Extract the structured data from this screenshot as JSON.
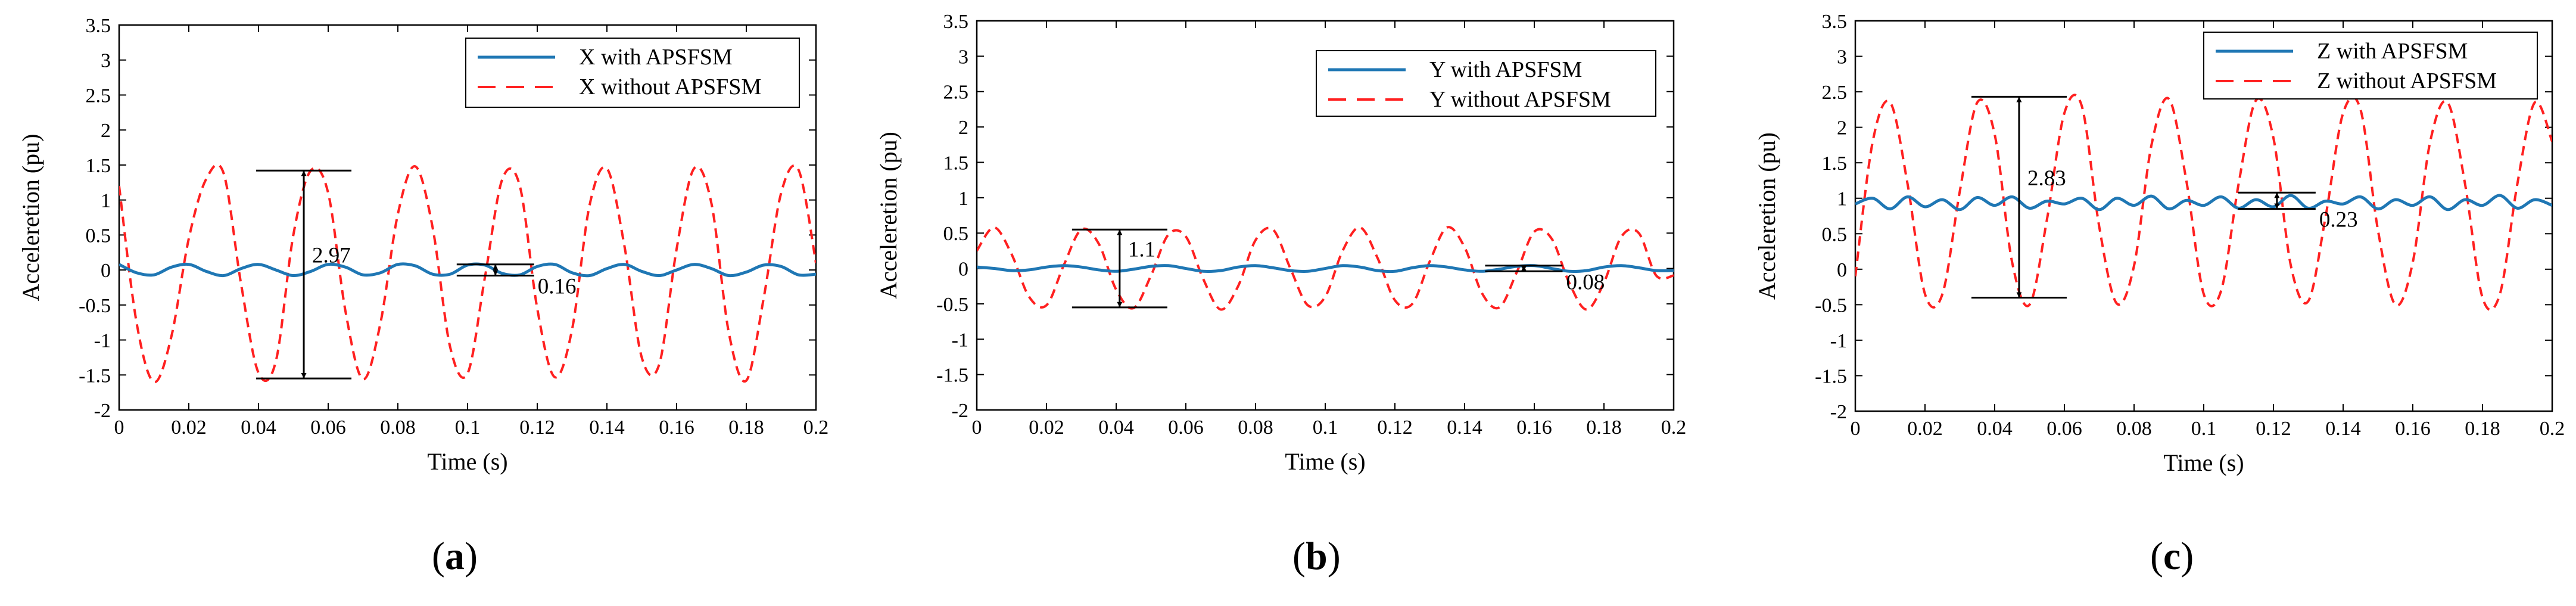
{
  "chart_data": [
    {
      "type": "line",
      "panel_label": "a",
      "xlabel": "Time (s)",
      "ylabel": "Acceleretion (pu)",
      "xlim": [
        0,
        0.2
      ],
      "ylim": [
        -2,
        3.5
      ],
      "xticks": [
        0,
        0.02,
        0.04,
        0.06,
        0.08,
        0.1,
        0.12,
        0.14,
        0.16,
        0.18,
        0.2
      ],
      "yticks": [
        -2,
        -1.5,
        -1,
        -0.5,
        0,
        0.5,
        1,
        1.5,
        2,
        2.5,
        3,
        3.5
      ],
      "grid": false,
      "legend_position": "top-right",
      "colors": {
        "with": "#1f77b4",
        "without": "#ff2020"
      },
      "series": [
        {
          "name": "X with APSFSM",
          "style": "solid",
          "x": [
            0,
            0.005,
            0.01,
            0.015,
            0.02,
            0.025,
            0.03,
            0.035,
            0.04,
            0.045,
            0.05,
            0.055,
            0.06,
            0.065,
            0.07,
            0.075,
            0.08,
            0.085,
            0.09,
            0.095,
            0.1,
            0.105,
            0.11,
            0.115,
            0.12,
            0.125,
            0.13,
            0.135,
            0.14,
            0.145,
            0.15,
            0.155,
            0.16,
            0.165,
            0.17,
            0.175,
            0.18,
            0.185,
            0.19,
            0.195,
            0.2
          ],
          "values": [
            0.08,
            -0.04,
            -0.07,
            0.04,
            0.08,
            -0.02,
            -0.08,
            0.02,
            0.08,
            0.0,
            -0.08,
            -0.02,
            0.08,
            0.04,
            -0.07,
            -0.04,
            0.08,
            0.06,
            -0.06,
            -0.06,
            0.07,
            0.07,
            -0.05,
            -0.07,
            0.05,
            0.08,
            -0.04,
            -0.08,
            0.02,
            0.08,
            -0.02,
            -0.08,
            0.0,
            0.08,
            0.02,
            -0.08,
            -0.03,
            0.07,
            0.05,
            -0.07,
            -0.06
          ]
        },
        {
          "name": "X without APSFSM",
          "style": "dashed",
          "x": [
            0,
            0.005,
            0.01,
            0.015,
            0.02,
            0.025,
            0.03,
            0.035,
            0.04,
            0.045,
            0.05,
            0.055,
            0.06,
            0.065,
            0.07,
            0.075,
            0.08,
            0.085,
            0.09,
            0.095,
            0.1,
            0.105,
            0.11,
            0.115,
            0.12,
            0.125,
            0.13,
            0.135,
            0.14,
            0.145,
            0.15,
            0.155,
            0.16,
            0.165,
            0.17,
            0.175,
            0.18,
            0.185,
            0.19,
            0.195,
            0.2
          ],
          "values": [
            1.2,
            -0.75,
            -1.6,
            -0.95,
            0.45,
            1.3,
            1.38,
            -0.2,
            -1.47,
            -1.3,
            0.5,
            1.42,
            1.1,
            -0.6,
            -1.56,
            -0.76,
            0.8,
            1.48,
            0.6,
            -1.1,
            -1.48,
            -0.1,
            1.3,
            1.2,
            -0.55,
            -1.53,
            -0.85,
            0.92,
            1.45,
            0.35,
            -1.25,
            -1.35,
            0.3,
            1.45,
            0.95,
            -0.9,
            -1.58,
            -0.4,
            1.1,
            1.43,
            0.1
          ]
        }
      ],
      "annotations": [
        {
          "label": "2.97",
          "x": 0.053,
          "y_from": -1.55,
          "y_to": 1.42
        },
        {
          "label": "0.16",
          "x": 0.108,
          "y_from": -0.08,
          "y_to": 0.08
        }
      ]
    },
    {
      "type": "line",
      "panel_label": "b",
      "xlabel": "Time (s)",
      "ylabel": "Acceleretion (pu)",
      "xlim": [
        0,
        0.2
      ],
      "ylim": [
        -2,
        3.5
      ],
      "xticks": [
        0,
        0.02,
        0.04,
        0.06,
        0.08,
        0.1,
        0.12,
        0.14,
        0.16,
        0.18,
        0.2
      ],
      "yticks": [
        -2,
        -1.5,
        -1,
        -0.5,
        0,
        0.5,
        1,
        1.5,
        2,
        2.5,
        3,
        3.5
      ],
      "grid": false,
      "legend_position": "top-right",
      "colors": {
        "with": "#1f77b4",
        "without": "#ff2020"
      },
      "series": [
        {
          "name": "Y with APSFSM",
          "style": "solid",
          "x": [
            0,
            0.005,
            0.01,
            0.015,
            0.02,
            0.025,
            0.03,
            0.035,
            0.04,
            0.045,
            0.05,
            0.055,
            0.06,
            0.065,
            0.07,
            0.075,
            0.08,
            0.085,
            0.09,
            0.095,
            0.1,
            0.105,
            0.11,
            0.115,
            0.12,
            0.125,
            0.13,
            0.135,
            0.14,
            0.145,
            0.15,
            0.155,
            0.16,
            0.165,
            0.17,
            0.175,
            0.18,
            0.185,
            0.19,
            0.195,
            0.2
          ],
          "values": [
            0.02,
            0.0,
            -0.03,
            -0.02,
            0.02,
            0.04,
            0.02,
            -0.02,
            -0.04,
            -0.01,
            0.03,
            0.04,
            0.0,
            -0.04,
            -0.03,
            0.02,
            0.04,
            0.01,
            -0.03,
            -0.04,
            0.0,
            0.04,
            0.02,
            -0.03,
            -0.04,
            0.01,
            0.04,
            0.02,
            -0.02,
            -0.04,
            -0.01,
            0.03,
            0.04,
            0.0,
            -0.04,
            -0.03,
            0.02,
            0.04,
            0.01,
            -0.03,
            -0.03
          ]
        },
        {
          "name": "Y without APSFSM",
          "style": "dashed",
          "x": [
            0,
            0.005,
            0.01,
            0.015,
            0.02,
            0.025,
            0.03,
            0.035,
            0.04,
            0.045,
            0.05,
            0.055,
            0.06,
            0.065,
            0.07,
            0.075,
            0.08,
            0.085,
            0.09,
            0.095,
            0.1,
            0.105,
            0.11,
            0.115,
            0.12,
            0.125,
            0.13,
            0.135,
            0.14,
            0.145,
            0.15,
            0.155,
            0.16,
            0.165,
            0.17,
            0.175,
            0.18,
            0.185,
            0.19,
            0.195,
            0.2
          ],
          "values": [
            0.25,
            0.58,
            0.2,
            -0.4,
            -0.52,
            0.05,
            0.55,
            0.35,
            -0.3,
            -0.56,
            -0.1,
            0.48,
            0.45,
            -0.15,
            -0.58,
            -0.25,
            0.4,
            0.55,
            0.0,
            -0.52,
            -0.4,
            0.25,
            0.58,
            0.15,
            -0.45,
            -0.5,
            0.1,
            0.58,
            0.3,
            -0.35,
            -0.55,
            -0.05,
            0.52,
            0.42,
            -0.2,
            -0.58,
            -0.2,
            0.45,
            0.5,
            -0.1,
            -0.1
          ]
        }
      ],
      "annotations": [
        {
          "label": "1.1",
          "x": 0.041,
          "y_from": -0.55,
          "y_to": 0.55
        },
        {
          "label": "0.08",
          "x": 0.157,
          "y_from": -0.04,
          "y_to": 0.04
        }
      ]
    },
    {
      "type": "line",
      "panel_label": "c",
      "xlabel": "Time (s)",
      "ylabel": "Acceleretion (pu)",
      "xlim": [
        0,
        0.2
      ],
      "ylim": [
        -2,
        3.5
      ],
      "xticks": [
        0,
        0.02,
        0.04,
        0.06,
        0.08,
        0.1,
        0.12,
        0.14,
        0.16,
        0.18,
        0.2
      ],
      "yticks": [
        -2,
        -1.5,
        -1,
        -0.5,
        0,
        0.5,
        1,
        1.5,
        2,
        2.5,
        3,
        3.5
      ],
      "grid": false,
      "legend_position": "top-right",
      "colors": {
        "with": "#1f77b4",
        "without": "#ff2020"
      },
      "series": [
        {
          "name": "Z with APSFSM",
          "style": "solid",
          "x": [
            0,
            0.005,
            0.01,
            0.015,
            0.02,
            0.025,
            0.03,
            0.035,
            0.04,
            0.045,
            0.05,
            0.055,
            0.06,
            0.065,
            0.07,
            0.075,
            0.08,
            0.085,
            0.09,
            0.095,
            0.1,
            0.105,
            0.11,
            0.115,
            0.12,
            0.125,
            0.13,
            0.135,
            0.14,
            0.145,
            0.15,
            0.155,
            0.16,
            0.165,
            0.17,
            0.175,
            0.18,
            0.185,
            0.19,
            0.195,
            0.2
          ],
          "values": [
            0.92,
            1.0,
            0.85,
            1.02,
            0.88,
            0.98,
            0.84,
            1.01,
            0.9,
            1.02,
            0.86,
            0.96,
            0.92,
            1.0,
            0.84,
            1.0,
            0.9,
            1.03,
            0.85,
            0.97,
            0.9,
            1.02,
            0.86,
            0.98,
            0.88,
            1.04,
            0.86,
            0.96,
            0.92,
            1.02,
            0.85,
            0.98,
            0.9,
            1.02,
            0.84,
            0.98,
            0.9,
            1.04,
            0.86,
            0.98,
            0.9
          ]
        },
        {
          "name": "Z without APSFSM",
          "style": "dashed",
          "x": [
            0,
            0.005,
            0.01,
            0.015,
            0.02,
            0.025,
            0.03,
            0.035,
            0.04,
            0.045,
            0.05,
            0.055,
            0.06,
            0.065,
            0.07,
            0.075,
            0.08,
            0.085,
            0.09,
            0.095,
            0.1,
            0.105,
            0.11,
            0.115,
            0.12,
            0.125,
            0.13,
            0.135,
            0.14,
            0.145,
            0.15,
            0.155,
            0.16,
            0.165,
            0.17,
            0.175,
            0.18,
            0.185,
            0.19,
            0.195,
            0.2
          ],
          "values": [
            -0.1,
            1.8,
            2.35,
            1.2,
            -0.35,
            -0.35,
            1.1,
            2.35,
            1.9,
            0.1,
            -0.5,
            0.7,
            2.2,
            2.3,
            0.6,
            -0.48,
            0.05,
            1.75,
            2.4,
            1.25,
            -0.35,
            -0.3,
            1.2,
            2.38,
            1.85,
            0.05,
            -0.45,
            0.75,
            2.2,
            2.25,
            0.55,
            -0.5,
            0.1,
            1.8,
            2.35,
            1.2,
            -0.4,
            -0.35,
            1.2,
            2.35,
            1.8
          ]
        }
      ],
      "annotations": [
        {
          "label": "2.83",
          "x": 0.047,
          "y_from": -0.4,
          "y_to": 2.43
        },
        {
          "label": "0.23",
          "x": 0.121,
          "y_from": 0.85,
          "y_to": 1.08
        }
      ]
    }
  ]
}
